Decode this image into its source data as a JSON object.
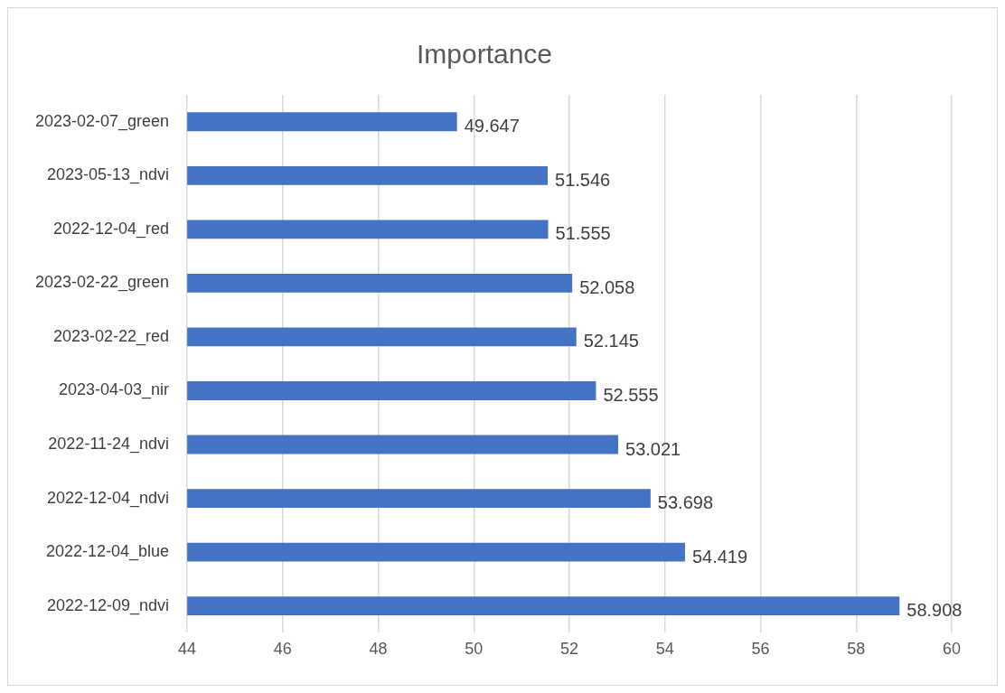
{
  "chart_data": {
    "type": "bar",
    "orientation": "horizontal",
    "title": "Importance",
    "categories": [
      "2023-02-07_green",
      "2023-05-13_ndvi",
      "2022-12-04_red",
      "2023-02-22_green",
      "2023-02-22_red",
      "2023-04-03_nir",
      "2022-11-24_ndvi",
      "2022-12-04_ndvi",
      "2022-12-04_blue",
      "2022-12-09_ndvi"
    ],
    "values": [
      49.647,
      51.546,
      51.555,
      52.058,
      52.145,
      52.555,
      53.021,
      53.698,
      54.419,
      58.908
    ],
    "color": "#4472c4",
    "xlim": [
      44,
      60
    ],
    "xticks": [
      44,
      46,
      48,
      50,
      52,
      54,
      56,
      58,
      60
    ],
    "grid": "x",
    "data_labels": true
  }
}
